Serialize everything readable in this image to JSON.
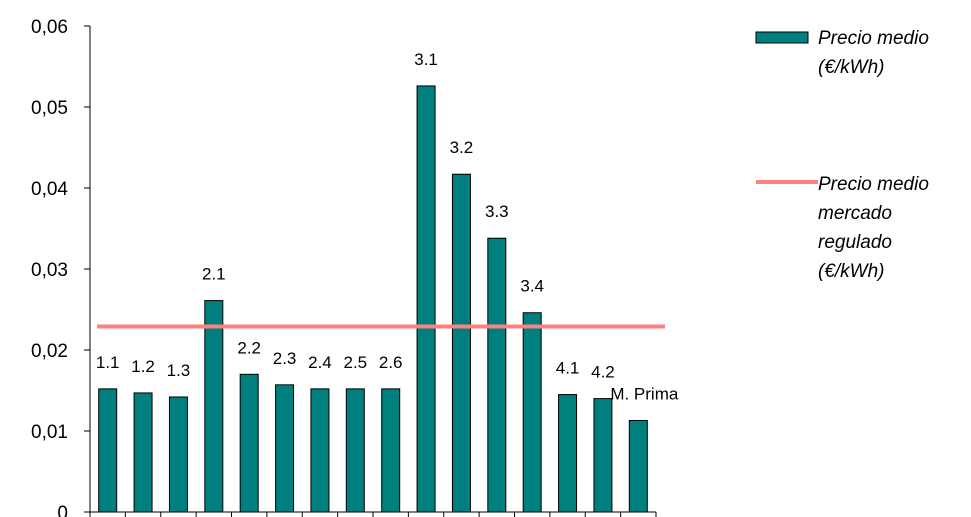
{
  "chart_data": {
    "type": "bar",
    "categories": [
      "1.1",
      "1.2",
      "1.3",
      "2.1",
      "2.2",
      "2.3",
      "2.4",
      "2.5",
      "2.6",
      "3.1",
      "3.2",
      "3.3",
      "3.4",
      "4.1",
      "4.2",
      "M. Prima"
    ],
    "series": [
      {
        "name": "Precio medio (€/kWh)",
        "legend_lines": [
          "Precio medio",
          "(€/kWh)"
        ],
        "values": [
          0.0152,
          0.0147,
          0.0142,
          0.0261,
          0.017,
          0.0157,
          0.0152,
          0.0152,
          0.0152,
          0.0526,
          0.0417,
          0.0338,
          0.0246,
          0.0145,
          0.014,
          0.0113
        ],
        "color": "#007f7f"
      }
    ],
    "reference_line": {
      "name": "Precio medio mercado regulado (€/kWh)",
      "legend_lines": [
        "Precio medio",
        "mercado",
        "regulado",
        "(€/kWh)"
      ],
      "value": 0.0229,
      "color": "#ff8080"
    },
    "y_ticks": [
      "0",
      "0,01",
      "0,02",
      "0,03",
      "0,04",
      "0,05",
      "0,06"
    ],
    "ylim": [
      0,
      0.06
    ],
    "title": "",
    "xlabel": "",
    "ylabel": "",
    "grid": false,
    "legend_position": "right"
  }
}
